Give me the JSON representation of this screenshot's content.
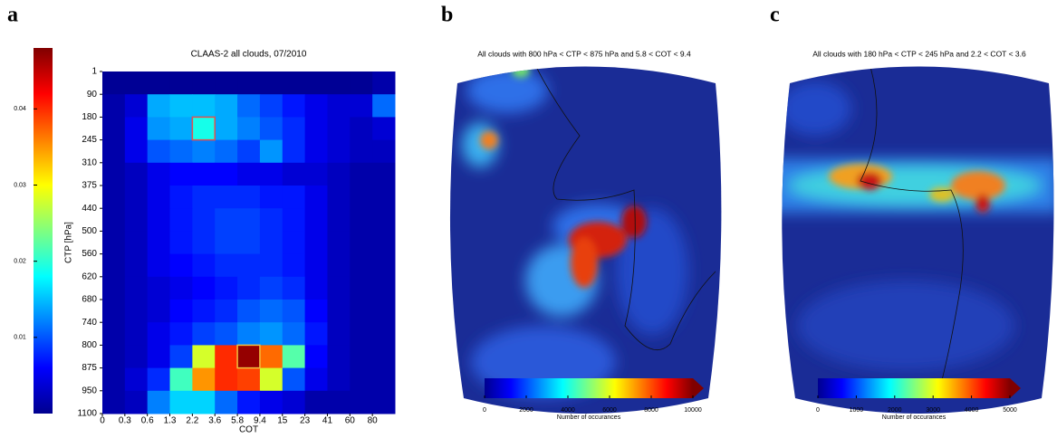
{
  "chart_data": [
    {
      "type": "heatmap",
      "panel_label": "a",
      "title": "CLAAS-2 all clouds, 07/2010",
      "x_label": "COT",
      "y_label": "CTP [hPa]",
      "x_edges": [
        0,
        0.3,
        0.6,
        1.3,
        2.2,
        3.6,
        5.8,
        9.4,
        15,
        23,
        41,
        60,
        80
      ],
      "y_edges": [
        1,
        90,
        180,
        245,
        310,
        375,
        440,
        500,
        560,
        620,
        680,
        740,
        800,
        875,
        950,
        1100
      ],
      "values": [
        [
          0.001,
          0.001,
          0.001,
          0.001,
          0.001,
          0.001,
          0.001,
          0.001,
          0.001,
          0.001,
          0.001,
          0.001,
          0.002
        ],
        [
          0.002,
          0.004,
          0.014,
          0.015,
          0.015,
          0.014,
          0.011,
          0.009,
          0.007,
          0.005,
          0.004,
          0.004,
          0.011
        ],
        [
          0.002,
          0.005,
          0.013,
          0.014,
          0.019,
          0.014,
          0.012,
          0.01,
          0.008,
          0.005,
          0.004,
          0.003,
          0.004
        ],
        [
          0.002,
          0.005,
          0.01,
          0.011,
          0.012,
          0.011,
          0.009,
          0.013,
          0.008,
          0.005,
          0.004,
          0.003,
          0.003
        ],
        [
          0.002,
          0.003,
          0.005,
          0.006,
          0.006,
          0.006,
          0.005,
          0.005,
          0.004,
          0.004,
          0.003,
          0.002,
          0.002
        ],
        [
          0.002,
          0.003,
          0.005,
          0.007,
          0.008,
          0.008,
          0.008,
          0.007,
          0.007,
          0.005,
          0.003,
          0.002,
          0.002
        ],
        [
          0.002,
          0.003,
          0.005,
          0.007,
          0.008,
          0.009,
          0.009,
          0.008,
          0.007,
          0.005,
          0.003,
          0.002,
          0.002
        ],
        [
          0.002,
          0.003,
          0.005,
          0.007,
          0.008,
          0.009,
          0.009,
          0.008,
          0.007,
          0.005,
          0.003,
          0.002,
          0.002
        ],
        [
          0.002,
          0.003,
          0.005,
          0.006,
          0.007,
          0.008,
          0.008,
          0.008,
          0.007,
          0.005,
          0.003,
          0.002,
          0.002
        ],
        [
          0.002,
          0.003,
          0.004,
          0.005,
          0.006,
          0.007,
          0.008,
          0.009,
          0.008,
          0.005,
          0.003,
          0.002,
          0.002
        ],
        [
          0.002,
          0.003,
          0.004,
          0.006,
          0.007,
          0.008,
          0.01,
          0.011,
          0.01,
          0.006,
          0.003,
          0.002,
          0.002
        ],
        [
          0.002,
          0.003,
          0.005,
          0.007,
          0.009,
          0.01,
          0.012,
          0.013,
          0.011,
          0.007,
          0.003,
          0.002,
          0.002
        ],
        [
          0.002,
          0.003,
          0.005,
          0.009,
          0.028,
          0.04,
          0.047,
          0.037,
          0.022,
          0.006,
          0.003,
          0.002,
          0.002
        ],
        [
          0.002,
          0.004,
          0.008,
          0.021,
          0.035,
          0.04,
          0.039,
          0.028,
          0.01,
          0.005,
          0.003,
          0.002,
          0.002
        ],
        [
          0.002,
          0.003,
          0.012,
          0.016,
          0.016,
          0.011,
          0.007,
          0.005,
          0.004,
          0.002,
          0.002,
          0.002,
          0.002
        ]
      ],
      "clim": [
        0,
        0.048
      ],
      "cticks": [
        0.01,
        0.02,
        0.03,
        0.04
      ],
      "colormap": "jet"
    },
    {
      "type": "map",
      "panel_label": "b",
      "title": "All clouds with 800 hPa < CTP < 875 hPa and 5.8 < COT < 9.4",
      "colorbar_label": "Number of occurances",
      "clim": [
        0,
        10000
      ],
      "cticks": [
        0,
        2000,
        4000,
        6000,
        8000,
        10000
      ],
      "colormap": "jet"
    },
    {
      "type": "map",
      "panel_label": "c",
      "title": "All clouds with 180 hPa < CTP < 245 hPa and 2.2 < COT < 3.6",
      "colorbar_label": "Number of occurances",
      "clim": [
        0,
        5000
      ],
      "cticks": [
        0,
        1000,
        2000,
        3000,
        4000,
        5000
      ],
      "colormap": "jet"
    }
  ]
}
